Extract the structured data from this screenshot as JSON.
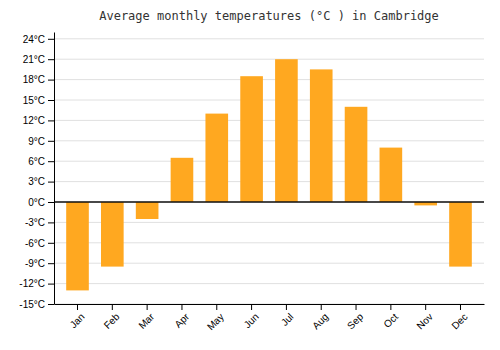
{
  "chart_data": {
    "type": "bar",
    "title": "Average monthly temperatures (°C ) in Cambridge",
    "categories": [
      "Jan",
      "Feb",
      "Mar",
      "Apr",
      "May",
      "Jun",
      "Jul",
      "Aug",
      "Sep",
      "Oct",
      "Nov",
      "Dec"
    ],
    "values": [
      -13,
      -9.5,
      -2.5,
      6.5,
      13,
      18.5,
      21,
      19.5,
      14,
      8,
      -0.5,
      -9.5
    ],
    "color": "#FFA820",
    "ylim": [
      -15,
      25
    ],
    "yticks": [
      {
        "value": -15,
        "label": "-15°C"
      },
      {
        "value": -12,
        "label": "-12°C"
      },
      {
        "value": -9,
        "label": "-9°C"
      },
      {
        "value": -6,
        "label": "-6°C"
      },
      {
        "value": -3,
        "label": "-3°C"
      },
      {
        "value": 0,
        "label": "0°C"
      },
      {
        "value": 3,
        "label": "3°C"
      },
      {
        "value": 6,
        "label": "6°C"
      },
      {
        "value": 9,
        "label": "9°C"
      },
      {
        "value": 12,
        "label": "12°C"
      },
      {
        "value": 15,
        "label": "15°C"
      },
      {
        "value": 18,
        "label": "18°C"
      },
      {
        "value": 21,
        "label": "21°C"
      },
      {
        "value": 24,
        "label": "24°C"
      }
    ],
    "grid": true
  }
}
